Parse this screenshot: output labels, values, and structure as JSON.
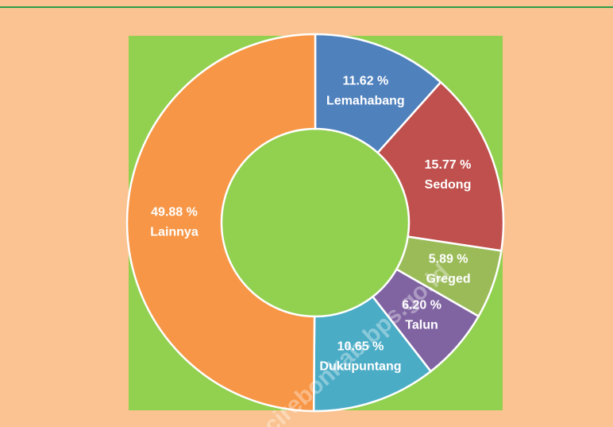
{
  "chart_data": {
    "type": "donut",
    "categories": [
      "Lemahabang",
      "Sedong",
      "Greged",
      "Talun",
      "Dukupuntang",
      "Lainnya"
    ],
    "values": [
      11.62,
      15.77,
      5.89,
      6.2,
      10.65,
      49.88
    ],
    "value_labels": [
      "11.62 %",
      "15.77 %",
      "5.89 %",
      "6.20 %",
      "10.65 %",
      "49.88 %"
    ],
    "colors": [
      "#4f81bd",
      "#c0504d",
      "#9bbb59",
      "#8064a2",
      "#4bacc6",
      "#f79646"
    ],
    "watermark": "cirebonkab.bps.go.id"
  }
}
